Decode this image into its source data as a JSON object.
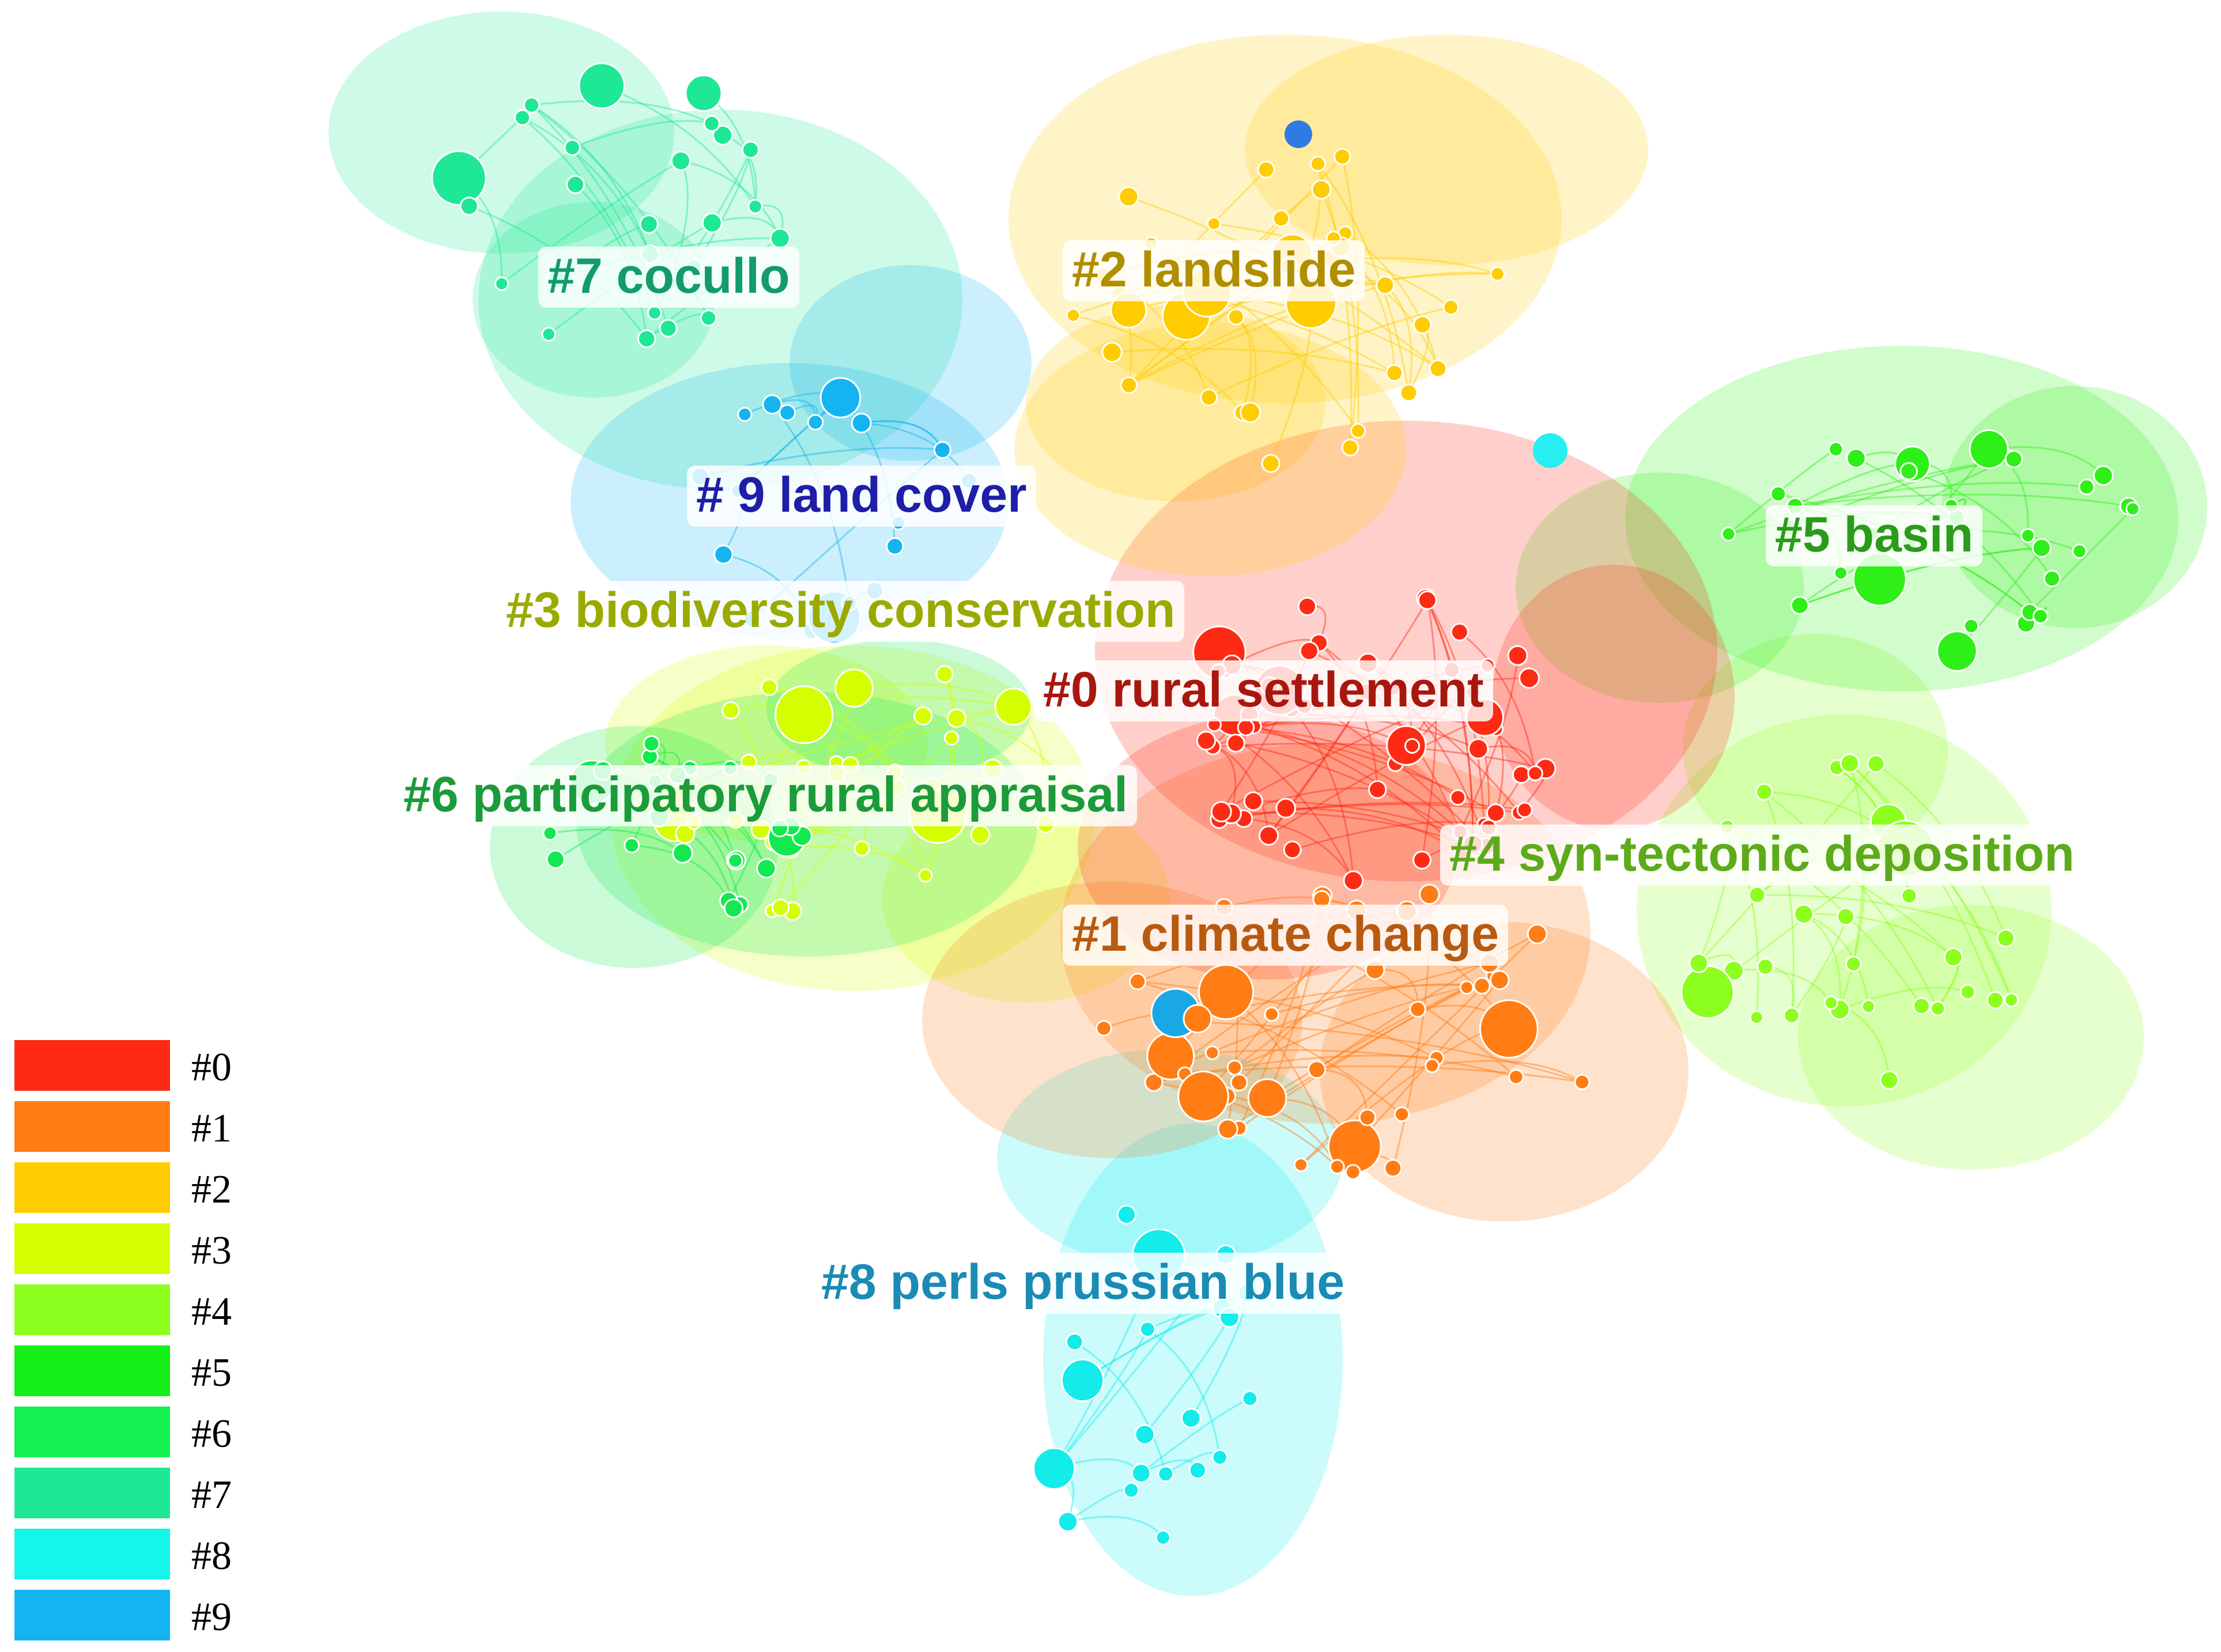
{
  "clusters": [
    {
      "id": 0,
      "label": "#0 rural settlement",
      "color": "#FF2A14",
      "label_color": "#A8170E"
    },
    {
      "id": 1,
      "label": "#1 climate change",
      "color": "#FF7D14",
      "label_color": "#B85A10"
    },
    {
      "id": 2,
      "label": "#2 landslide",
      "color": "#FFCC00",
      "label_color": "#B08E00"
    },
    {
      "id": 3,
      "label": "#3 biodiversity conservation",
      "color": "#D4FF00",
      "label_color": "#9AAA00"
    },
    {
      "id": 4,
      "label": "#4 syn-tectonic deposition",
      "color": "#8CFF1E",
      "label_color": "#5DAA1B"
    },
    {
      "id": 5,
      "label": "#5 basin",
      "color": "#2EF018",
      "label_color": "#2B9B1B"
    },
    {
      "id": 6,
      "label": "#6 participatory rural appraisal",
      "color": "#14E850",
      "label_color": "#1B9B3A"
    },
    {
      "id": 7,
      "label": "#7 cocullo",
      "color": "#1EE896",
      "label_color": "#139C6A"
    },
    {
      "id": 8,
      "label": "#8 perls prussian blue",
      "color": "#14EBEB",
      "label_color": "#1A8BB5"
    },
    {
      "id": 9,
      "label": "# 9  land cover",
      "color": "#14B4F0",
      "label_color": "#1E1EA8"
    }
  ],
  "legend": [
    {
      "label": "#0",
      "color": "#FF2A14"
    },
    {
      "label": "#1",
      "color": "#FF7D14"
    },
    {
      "label": "#2",
      "color": "#FFCC00"
    },
    {
      "label": "#3",
      "color": "#D4FF00"
    },
    {
      "label": "#4",
      "color": "#8CFF1E"
    },
    {
      "label": "#5",
      "color": "#14F018"
    },
    {
      "label": "#6",
      "color": "#14F050"
    },
    {
      "label": "#7",
      "color": "#1EE896"
    },
    {
      "label": "#8",
      "color": "#14F5EB"
    },
    {
      "label": "#9",
      "color": "#14B4F0"
    }
  ]
}
